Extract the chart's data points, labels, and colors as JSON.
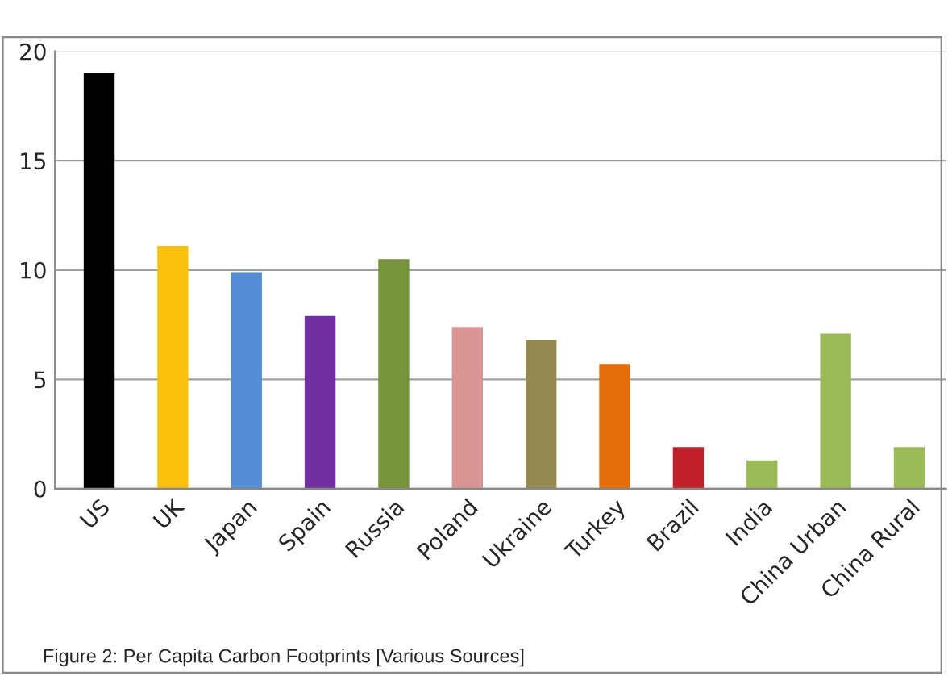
{
  "chart_data": {
    "type": "bar",
    "categories": [
      "US",
      "UK",
      "Japan",
      "Spain",
      "Russia",
      "Poland",
      "Ukraine",
      "Turkey",
      "Brazil",
      "India",
      "China Urban",
      "China Rural"
    ],
    "values": [
      19,
      11.1,
      9.9,
      7.9,
      10.5,
      7.4,
      6.8,
      5.7,
      1.9,
      1.3,
      7.1,
      1.9
    ],
    "colors": [
      "#000000",
      "#fcc00f",
      "#548dd4",
      "#7030a0",
      "#77933c",
      "#d99594",
      "#938953",
      "#e46c0a",
      "#c0202a",
      "#9bbb59",
      "#9bbb59",
      "#9bbb59"
    ],
    "ylim": [
      0,
      20
    ],
    "yticks": [
      0,
      5,
      10,
      15,
      20
    ],
    "grid": "y",
    "annotations": [
      "Figure 2: Per Capita Carbon Footprints [Various Sources]"
    ]
  }
}
